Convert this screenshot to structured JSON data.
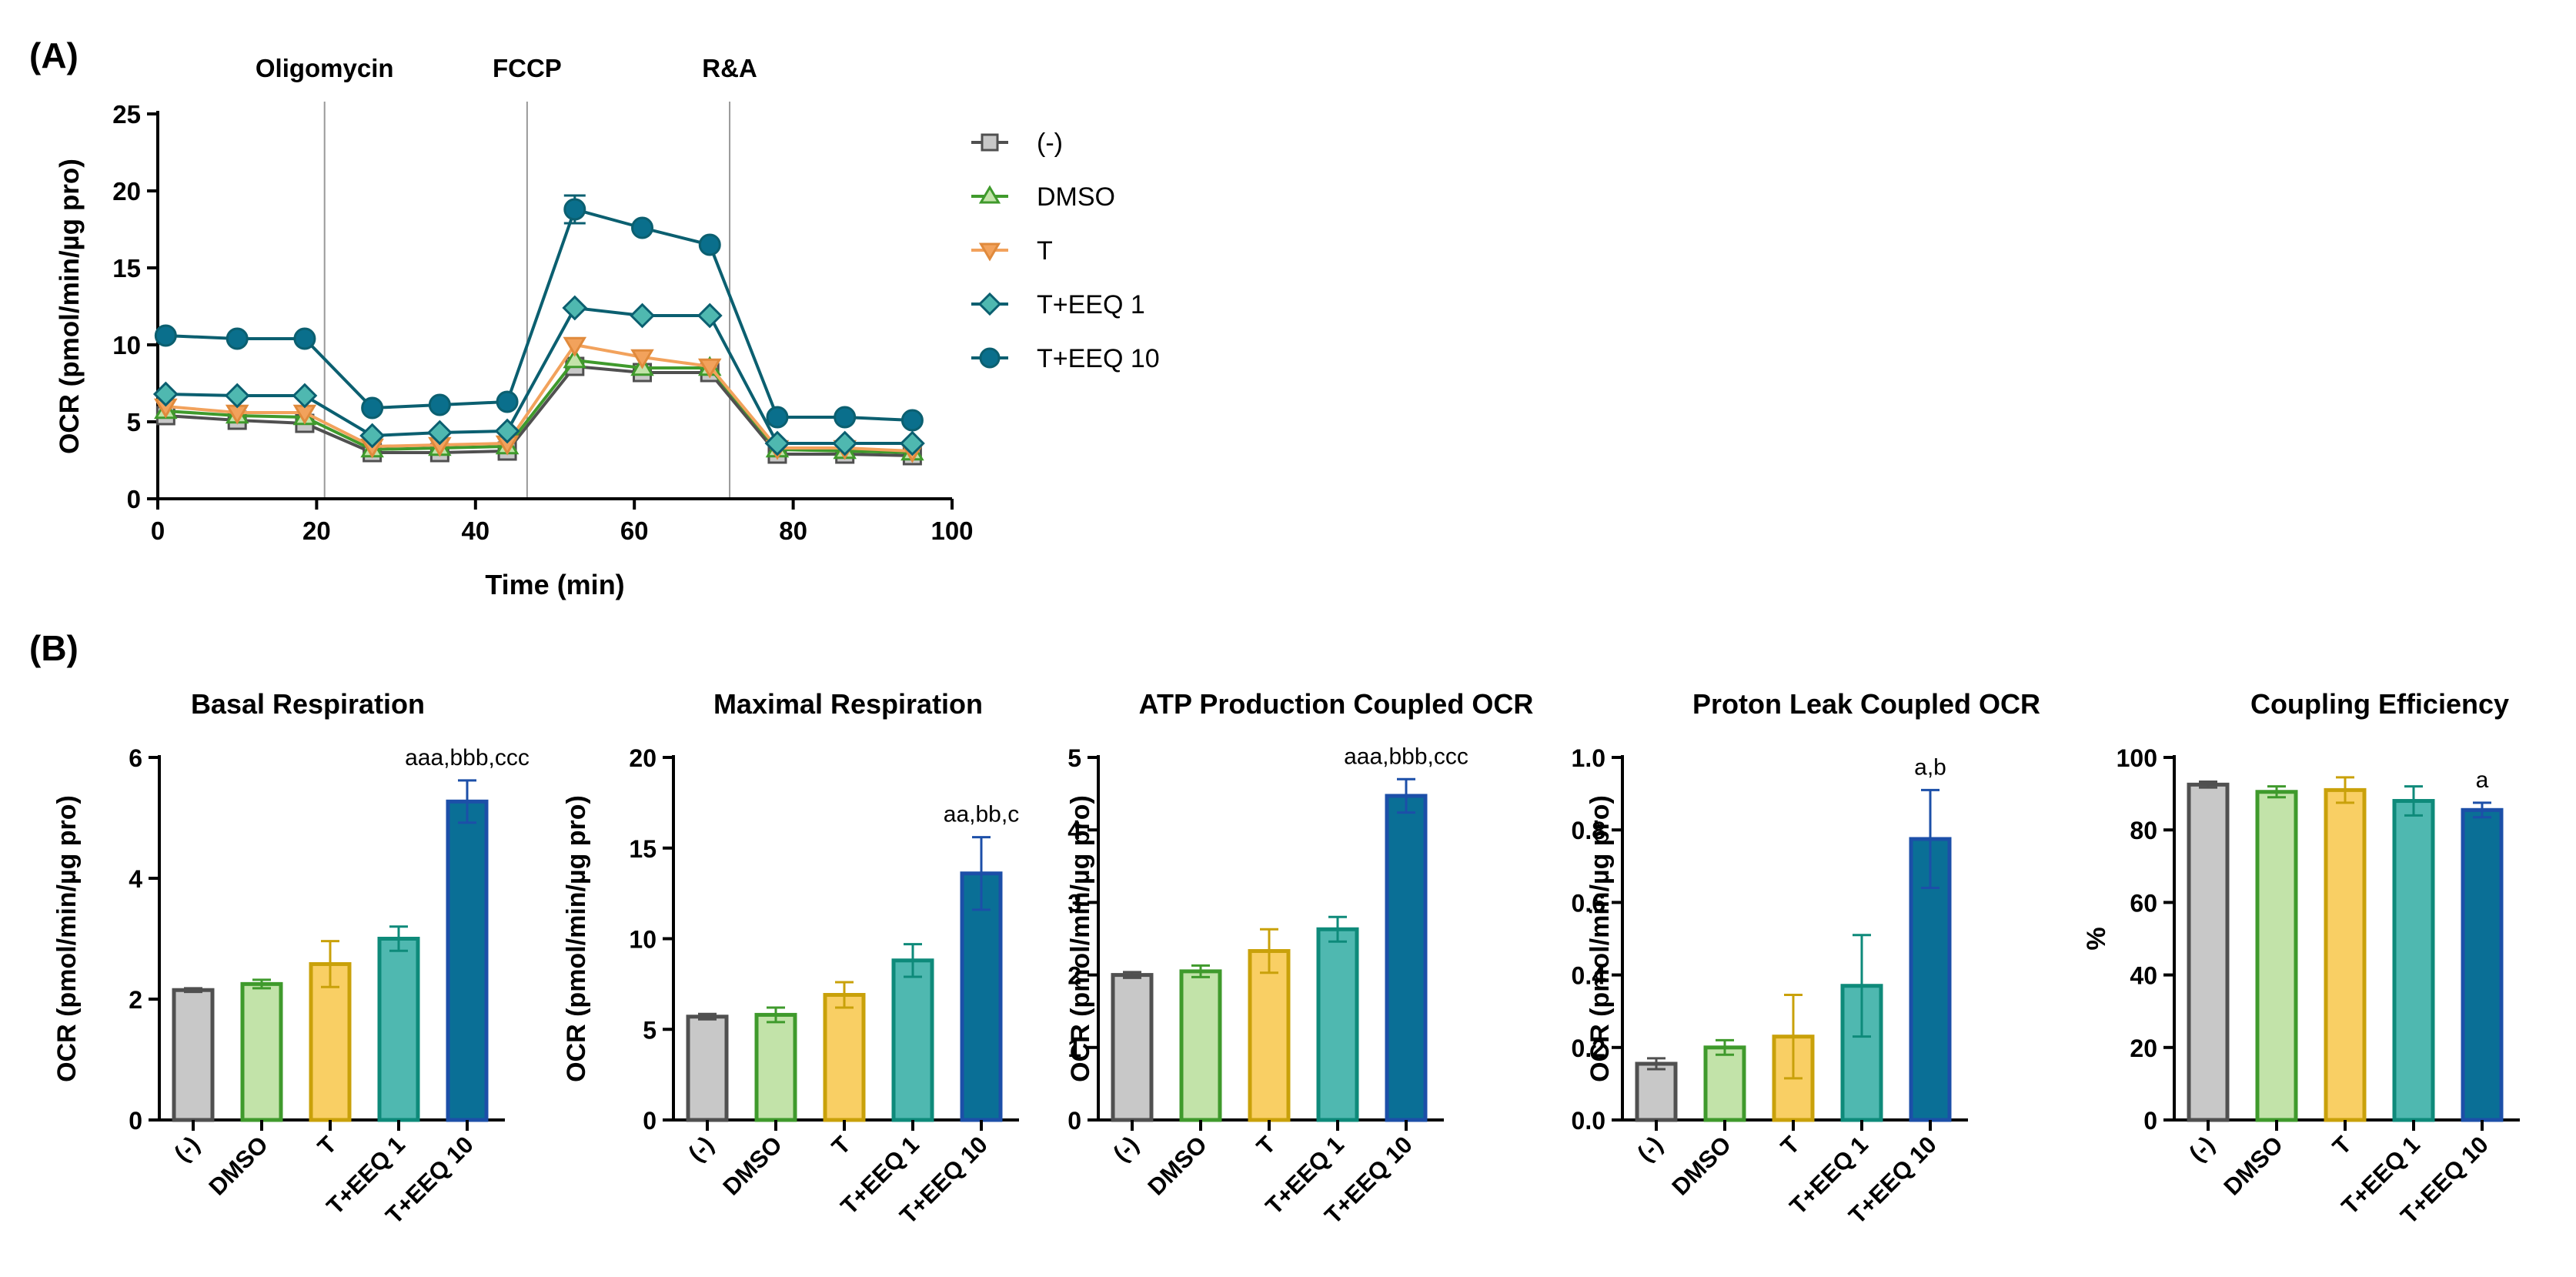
{
  "panel_labels": {
    "a": "(A)",
    "b": "(B)"
  },
  "colors": {
    "neg": {
      "stroke": "#505050",
      "fill": "#c8c8c8"
    },
    "dmso": {
      "stroke": "#3f9a2c",
      "fill": "#c2e3a9"
    },
    "t": {
      "stroke": "#c9a10a",
      "fill": "#f9cf64"
    },
    "eeq1": {
      "stroke": "#0e8a7a",
      "fill": "#4fb8b0"
    },
    "eeq10": {
      "stroke": "#1c4fa8",
      "fill": "#0a6f96"
    },
    "line_t": "#f2a25c",
    "line_eeq": "#0b5f70"
  },
  "chart_data": [
    {
      "type": "line",
      "title": "",
      "xlabel": "Time (min)",
      "ylabel": "OCR (pmol/min/µg pro)",
      "xlim": [
        0,
        100
      ],
      "ylim": [
        0,
        25
      ],
      "xticks": [
        "0",
        "20",
        "40",
        "60",
        "80",
        "100"
      ],
      "yticks": [
        "0",
        "5",
        "10",
        "15",
        "20",
        "25"
      ],
      "annotations": [
        {
          "label": "Oligomycin",
          "x": 21
        },
        {
          "label": "FCCP",
          "x": 46.5
        },
        {
          "label": "R&A",
          "x": 72
        }
      ],
      "x": [
        1,
        10,
        18.5,
        27,
        35.5,
        44,
        52.5,
        61,
        69.5,
        78,
        86.5,
        95
      ],
      "series": [
        {
          "name": "(-)",
          "marker": "square",
          "values": [
            5.4,
            5.1,
            4.9,
            3.0,
            3.0,
            3.1,
            8.6,
            8.2,
            8.2,
            2.9,
            2.9,
            2.8
          ]
        },
        {
          "name": "DMSO",
          "marker": "triangle-up",
          "values": [
            5.7,
            5.4,
            5.3,
            3.2,
            3.3,
            3.4,
            9.0,
            8.5,
            8.5,
            3.2,
            3.1,
            3.0
          ]
        },
        {
          "name": "T",
          "marker": "triangle-down",
          "values": [
            6.0,
            5.6,
            5.6,
            3.4,
            3.5,
            3.6,
            10.0,
            9.2,
            8.6,
            3.3,
            3.3,
            3.1
          ]
        },
        {
          "name": "T+EEQ 1",
          "marker": "diamond",
          "values": [
            6.8,
            6.7,
            6.7,
            4.1,
            4.3,
            4.4,
            12.4,
            11.9,
            11.9,
            3.6,
            3.6,
            3.6
          ]
        },
        {
          "name": "T+EEQ 10",
          "marker": "circle",
          "values": [
            10.6,
            10.4,
            10.4,
            5.9,
            6.1,
            6.3,
            18.8,
            17.6,
            16.5,
            5.3,
            5.3,
            5.1
          ],
          "errors": [
            0,
            0,
            0,
            0,
            0,
            0,
            0.9,
            0,
            0,
            0,
            0,
            0
          ]
        }
      ]
    },
    {
      "type": "bar",
      "title": "Basal Respiration",
      "ylabel": "OCR (pmol/min/µg pro)",
      "categories": [
        "(-)",
        "DMSO",
        "T",
        "T+EEQ 1",
        "T+EEQ 10"
      ],
      "values": [
        2.15,
        2.25,
        2.58,
        3.0,
        5.27
      ],
      "errors": [
        0.03,
        0.07,
        0.38,
        0.2,
        0.35
      ],
      "ylim": [
        0,
        6
      ],
      "yticks": [
        "0",
        "2",
        "4",
        "6"
      ],
      "significance": [
        "",
        "",
        "",
        "",
        "aaa,bbb,ccc"
      ]
    },
    {
      "type": "bar",
      "title": "Maximal Respiration",
      "ylabel": "OCR (pmol/min/µg pro)",
      "categories": [
        "(-)",
        "DMSO",
        "T",
        "T+EEQ 1",
        "T+EEQ 10"
      ],
      "values": [
        5.7,
        5.8,
        6.9,
        8.8,
        13.6
      ],
      "errors": [
        0.15,
        0.4,
        0.7,
        0.9,
        2.0
      ],
      "ylim": [
        0,
        20
      ],
      "yticks": [
        "0",
        "5",
        "10",
        "15",
        "20"
      ],
      "significance": [
        "",
        "",
        "",
        "",
        "aa,bb,c"
      ]
    },
    {
      "type": "bar",
      "title": "ATP Production Coupled OCR",
      "ylabel": "OCR (pmol/min/µg pro)",
      "categories": [
        "(-)",
        "DMSO",
        "T",
        "T+EEQ 1",
        "T+EEQ 10"
      ],
      "values": [
        2.0,
        2.05,
        2.33,
        2.63,
        4.47
      ],
      "errors": [
        0.04,
        0.08,
        0.3,
        0.17,
        0.23
      ],
      "ylim": [
        0,
        5
      ],
      "yticks": [
        "0",
        "1",
        "2",
        "3",
        "4",
        "5"
      ],
      "significance": [
        "",
        "",
        "",
        "",
        "aaa,bbb,ccc"
      ]
    },
    {
      "type": "bar",
      "title": "Proton Leak Coupled OCR",
      "ylabel": "OCR (pmol/min/µg pro)",
      "categories": [
        "(-)",
        "DMSO",
        "T",
        "T+EEQ 1",
        "T+EEQ 10"
      ],
      "values": [
        0.155,
        0.2,
        0.23,
        0.37,
        0.775
      ],
      "errors": [
        0.015,
        0.02,
        0.115,
        0.14,
        0.135
      ],
      "ylim": [
        0,
        1.0
      ],
      "yticks": [
        "0.0",
        "0.2",
        "0.4",
        "0.6",
        "0.8",
        "1.0"
      ],
      "significance": [
        "",
        "",
        "",
        "",
        "a,b"
      ]
    },
    {
      "type": "bar",
      "title": "Coupling Efficiency",
      "ylabel": "%",
      "categories": [
        "(-)",
        "DMSO",
        "T",
        "T+EEQ 1",
        "T+EEQ 10"
      ],
      "values": [
        92.5,
        90.5,
        91.0,
        88.0,
        85.5
      ],
      "errors": [
        0.8,
        1.5,
        3.5,
        4.0,
        2.0
      ],
      "ylim": [
        0,
        100
      ],
      "yticks": [
        "0",
        "20",
        "40",
        "60",
        "80",
        "100"
      ],
      "significance": [
        "",
        "",
        "",
        "",
        "a"
      ]
    }
  ]
}
